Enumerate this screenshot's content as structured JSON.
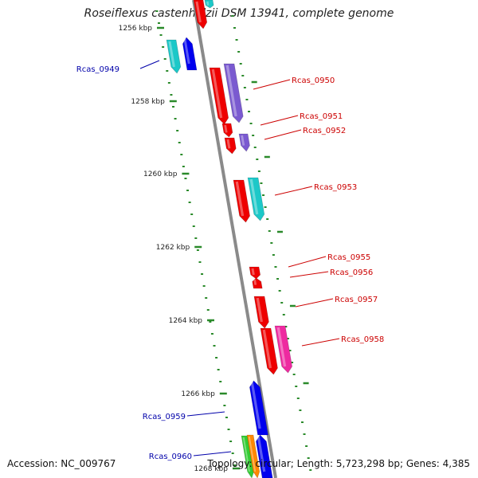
{
  "title": "Roseiflexus castenholzii DSM 13941, complete genome",
  "footer": {
    "accession": "Accession: NC_009767",
    "summary": "Topology: circular; Length: 5,723,298 bp; Genes: 4,385"
  },
  "colors": {
    "backbone": "#8a8a8a",
    "tick": "#2a8a2a",
    "forward_label": "#cc0000",
    "reverse_label": "#0000aa",
    "red": "#ee0000",
    "cyan": "#1cc8c8",
    "blue": "#0000ee",
    "purple": "#7a5ad0",
    "magenta": "#ee2aa0",
    "green": "#33cc33",
    "orange": "#ff8800"
  },
  "axis": {
    "tick_labels": [
      "1256 kbp",
      "1258 kbp",
      "1260 kbp",
      "1262 kbp",
      "1264 kbp",
      "1266 kbp",
      "1268 kbp"
    ]
  },
  "genes": [
    {
      "label": "Rcas_0949",
      "side": "left"
    },
    {
      "label": "Rcas_0950",
      "side": "right"
    },
    {
      "label": "Rcas_0951",
      "side": "right"
    },
    {
      "label": "Rcas_0952",
      "side": "right"
    },
    {
      "label": "Rcas_0953",
      "side": "right"
    },
    {
      "label": "Rcas_0955",
      "side": "right"
    },
    {
      "label": "Rcas_0956",
      "side": "right"
    },
    {
      "label": "Rcas_0957",
      "side": "right"
    },
    {
      "label": "Rcas_0958",
      "side": "right"
    },
    {
      "label": "Rcas_0959",
      "side": "left"
    },
    {
      "label": "Rcas_0960",
      "side": "left"
    }
  ]
}
